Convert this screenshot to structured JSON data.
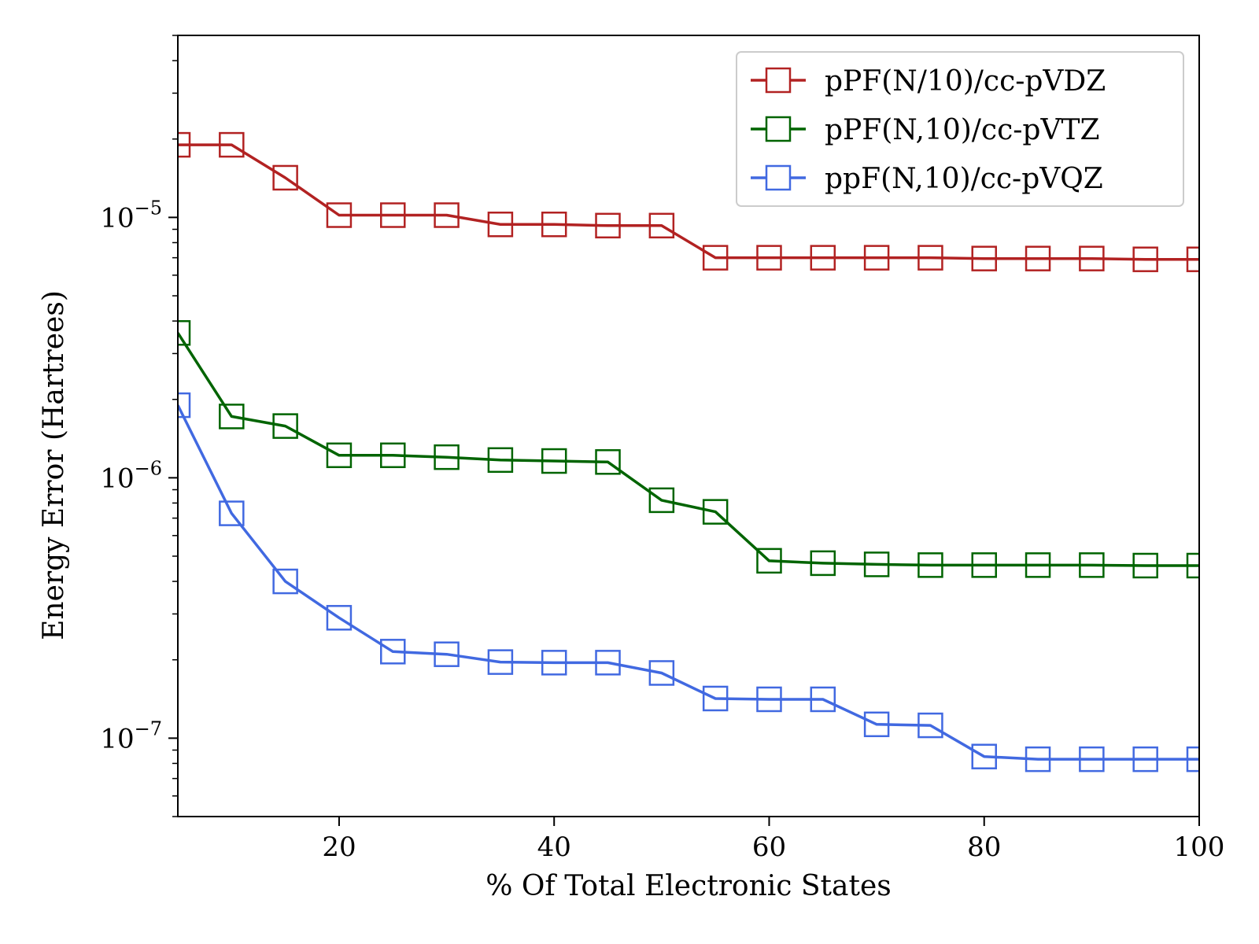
{
  "chart_data": {
    "type": "line",
    "title": "",
    "xlabel": "% Of Total Electronic States",
    "ylabel": "Energy Error (Hartrees)",
    "x_scale": "linear",
    "y_scale": "log",
    "xlim": [
      5,
      100
    ],
    "ylim": [
      5e-08,
      5e-05
    ],
    "xticks": [
      20,
      40,
      60,
      80,
      100
    ],
    "xtick_labels": [
      "20",
      "40",
      "60",
      "80",
      "100"
    ],
    "yticks": [
      1e-07,
      1e-06,
      1e-05
    ],
    "ytick_labels": [
      {
        "base": "10",
        "exp": "−7"
      },
      {
        "base": "10",
        "exp": "−6"
      },
      {
        "base": "10",
        "exp": "−5"
      }
    ],
    "grid": false,
    "legend_position": "top-right",
    "x": [
      5,
      10,
      15,
      20,
      25,
      30,
      35,
      40,
      45,
      50,
      55,
      60,
      65,
      70,
      75,
      80,
      85,
      90,
      95,
      100
    ],
    "series": [
      {
        "name": "pPF(N/10)/cc-pVDZ",
        "color": "#b22222",
        "marker": "square-open",
        "values": [
          1.9e-05,
          1.9e-05,
          1.42e-05,
          1.02e-05,
          1.02e-05,
          1.02e-05,
          9.4e-06,
          9.4e-06,
          9.3e-06,
          9.3e-06,
          7e-06,
          7e-06,
          7e-06,
          7e-06,
          7e-06,
          6.95e-06,
          6.95e-06,
          6.95e-06,
          6.9e-06,
          6.9e-06
        ]
      },
      {
        "name": "pPF(N,10)/cc-pVTZ",
        "color": "#006400",
        "marker": "square-open",
        "values": [
          3.6e-06,
          1.72e-06,
          1.58e-06,
          1.22e-06,
          1.22e-06,
          1.2e-06,
          1.17e-06,
          1.16e-06,
          1.15e-06,
          8.2e-07,
          7.4e-07,
          4.8e-07,
          4.7e-07,
          4.65e-07,
          4.62e-07,
          4.62e-07,
          4.62e-07,
          4.62e-07,
          4.6e-07,
          4.6e-07
        ]
      },
      {
        "name": "ppF(N,10)/cc-pVQZ",
        "color": "#4169e1",
        "marker": "square-open",
        "values": [
          1.9e-06,
          7.3e-07,
          4e-07,
          2.9e-07,
          2.15e-07,
          2.1e-07,
          1.96e-07,
          1.95e-07,
          1.95e-07,
          1.78e-07,
          1.42e-07,
          1.41e-07,
          1.41e-07,
          1.13e-07,
          1.12e-07,
          8.5e-08,
          8.3e-08,
          8.3e-08,
          8.3e-08,
          8.3e-08
        ]
      }
    ]
  }
}
